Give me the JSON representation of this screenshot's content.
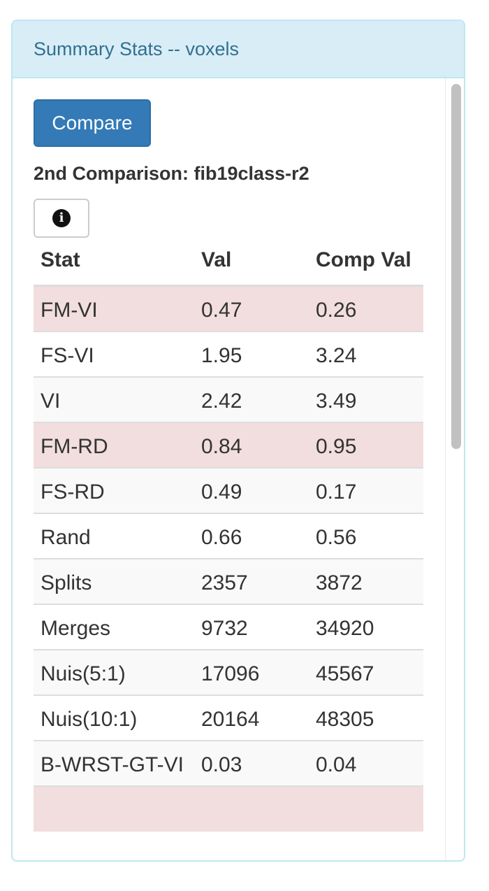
{
  "panel": {
    "title": "Summary Stats -- voxels"
  },
  "compare_button": "Compare",
  "comparison_label": "2nd Comparison: fib19class-r2",
  "info_button": {
    "icon": "info-circle-icon",
    "glyph": "i"
  },
  "table": {
    "headers": {
      "stat": "Stat",
      "val": "Val",
      "comp_val": "Comp Val"
    },
    "rows": [
      {
        "stat": "FM-VI",
        "val": "0.47",
        "comp": "0.26",
        "highlight": true
      },
      {
        "stat": "FS-VI",
        "val": "1.95",
        "comp": "3.24",
        "highlight": false
      },
      {
        "stat": "VI",
        "val": "2.42",
        "comp": "3.49",
        "highlight": false
      },
      {
        "stat": "FM-RD",
        "val": "0.84",
        "comp": "0.95",
        "highlight": true
      },
      {
        "stat": "FS-RD",
        "val": "0.49",
        "comp": "0.17",
        "highlight": false
      },
      {
        "stat": "Rand",
        "val": "0.66",
        "comp": "0.56",
        "highlight": false
      },
      {
        "stat": "Splits",
        "val": "2357",
        "comp": "3872",
        "highlight": false
      },
      {
        "stat": "Merges",
        "val": "9732",
        "comp": "34920",
        "highlight": false
      },
      {
        "stat": "Nuis(5:1)",
        "val": "17096",
        "comp": "45567",
        "highlight": false
      },
      {
        "stat": "Nuis(10:1)",
        "val": "20164",
        "comp": "48305",
        "highlight": false
      },
      {
        "stat": "B-WRST-GT-VI",
        "val": "0.03",
        "comp": "0.04",
        "highlight": false
      },
      {
        "stat": "",
        "val": "",
        "comp": "",
        "highlight": true
      }
    ]
  },
  "colors": {
    "heading_bg": "#d9edf7",
    "heading_text": "#31708f",
    "primary_button": "#337ab7",
    "danger_row": "#f2dede",
    "striped_row": "#f9f9f9"
  }
}
